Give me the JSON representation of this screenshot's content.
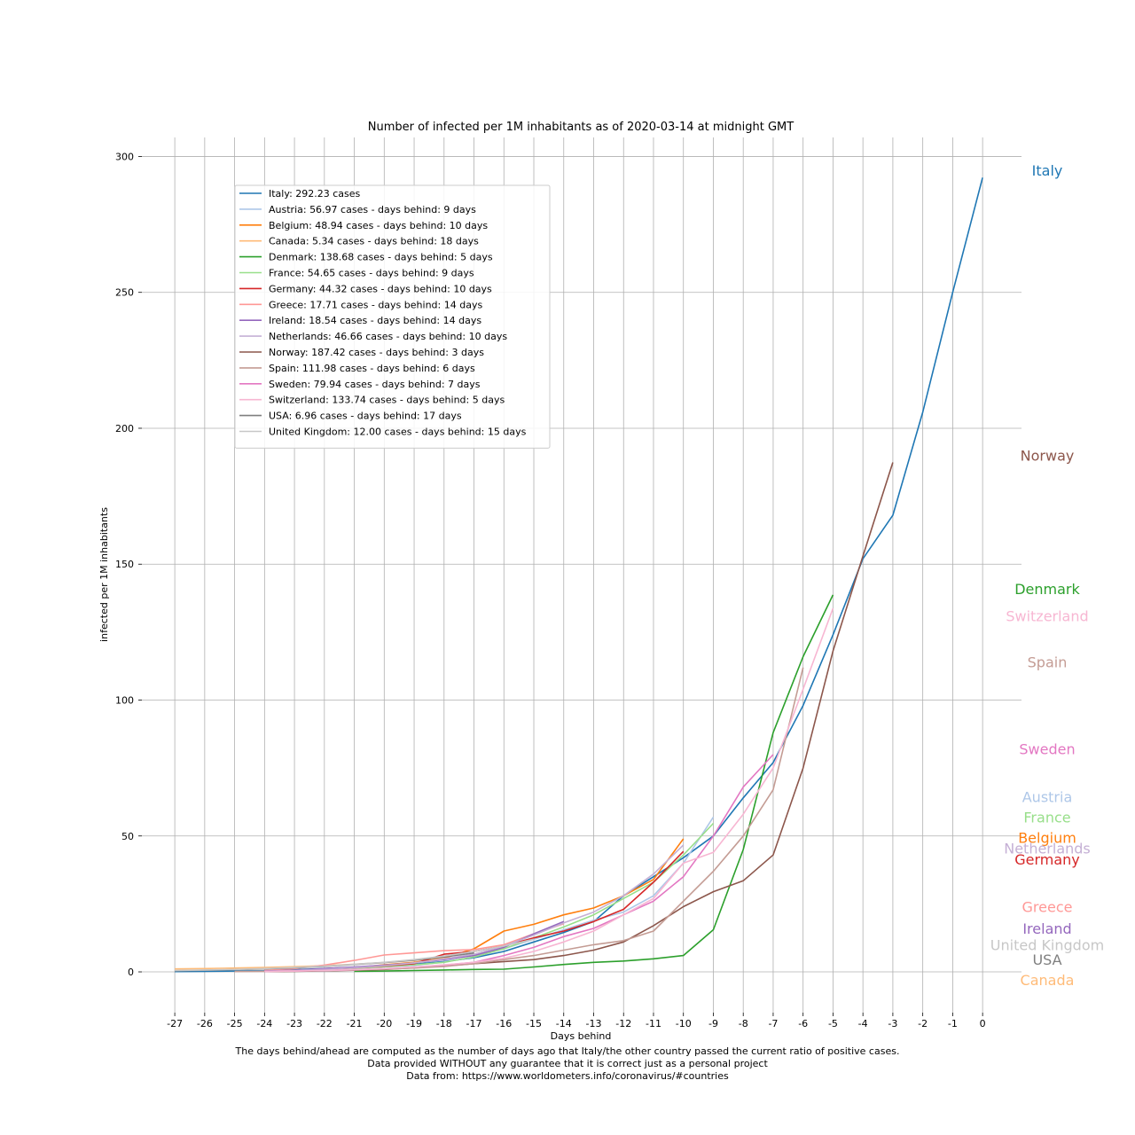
{
  "chart_data": {
    "type": "line",
    "title": "Number of infected per 1M inhabitants as of 2020-03-14 at midnight GMT",
    "xlabel": "Days behind",
    "ylabel": "infected per 1M inhabitants",
    "footnotes": [
      "The days behind/ahead are computed as the number of days ago that Italy/the other country passed the current ratio of positive cases.",
      "Data provided WITHOUT any guarantee that it is correct just as a personal project",
      "Data from: https://www.worldometers.info/coronavirus/#countries"
    ],
    "xlim": [
      -28.1,
      1.3
    ],
    "ylim": [
      -15,
      307
    ],
    "x_ticks": [
      -27,
      -26,
      -25,
      -24,
      -23,
      -22,
      -21,
      -20,
      -19,
      -18,
      -17,
      -16,
      -15,
      -14,
      -13,
      -12,
      -11,
      -10,
      -9,
      -8,
      -7,
      -6,
      -5,
      -4,
      -3,
      -2,
      -1,
      0
    ],
    "y_ticks": [
      0,
      50,
      100,
      150,
      200,
      250,
      300
    ],
    "grid": true,
    "legend_position": "upper-left",
    "series": [
      {
        "name": "Italy",
        "legend": "Italy: 292.23 cases",
        "color": "#1f77b4",
        "x": [
          -27,
          -26,
          -25,
          -24,
          -23,
          -22,
          -21,
          -20,
          -19,
          -18,
          -17,
          -16,
          -15,
          -14,
          -13,
          -12,
          -11,
          -10,
          -9,
          -8,
          -7,
          -6,
          -5,
          -4,
          -3,
          -2,
          -1,
          0
        ],
        "y": [
          0.1,
          0.2,
          0.3,
          0.4,
          0.8,
          1.2,
          1.7,
          2.2,
          2.8,
          3.8,
          5.2,
          7.5,
          11,
          14.5,
          18.5,
          28,
          35,
          42,
          50,
          64,
          77,
          98,
          124,
          152,
          168,
          206,
          250,
          292.23
        ]
      },
      {
        "name": "Austria",
        "legend": "Austria: 56.97 cases - days behind: 9 days",
        "color": "#aec7e8",
        "x": [
          -24,
          -23,
          -22,
          -21,
          -20,
          -19,
          -18,
          -17,
          -16,
          -15,
          -14,
          -13,
          -12,
          -11,
          -10,
          -9
        ],
        "y": [
          0.2,
          0.5,
          0.9,
          1.3,
          1.8,
          2.4,
          3.6,
          5.5,
          8.5,
          12,
          15.5,
          19,
          22,
          28,
          40,
          56.97
        ]
      },
      {
        "name": "Belgium",
        "legend": "Belgium: 48.94 cases - days behind: 10 days",
        "color": "#ff7f0e",
        "x": [
          -24,
          -23,
          -22,
          -21,
          -20,
          -19,
          -18,
          -17,
          -16,
          -15,
          -14,
          -13,
          -12,
          -11,
          -10
        ],
        "y": [
          0.2,
          0.4,
          0.8,
          1.5,
          2.6,
          3.5,
          5.0,
          8.5,
          15,
          17.5,
          21,
          23.5,
          28,
          34,
          48.94
        ]
      },
      {
        "name": "Canada",
        "legend": "Canada: 5.34 cases - days behind: 18 days",
        "color": "#ffbb78",
        "x": [
          -27,
          -26,
          -25,
          -24,
          -23,
          -22,
          -21,
          -20,
          -19,
          -18
        ],
        "y": [
          1.1,
          1.2,
          1.4,
          1.6,
          1.9,
          2.3,
          2.8,
          3.4,
          4.2,
          5.34
        ]
      },
      {
        "name": "Denmark",
        "legend": "Denmark: 138.68 cases - days behind: 5 days",
        "color": "#2ca02c",
        "x": [
          -21,
          -20,
          -19,
          -18,
          -17,
          -16,
          -15,
          -14,
          -13,
          -12,
          -11,
          -10,
          -9,
          -8,
          -7,
          -6,
          -5
        ],
        "y": [
          0.2,
          0.3,
          0.5,
          0.7,
          0.9,
          1.0,
          1.8,
          2.7,
          3.5,
          4.0,
          4.8,
          6.0,
          15.5,
          45,
          88,
          116,
          138.68
        ]
      },
      {
        "name": "France",
        "legend": "France: 54.65 cases - days behind: 9 days",
        "color": "#98df8a",
        "x": [
          -24,
          -23,
          -22,
          -21,
          -20,
          -19,
          -18,
          -17,
          -16,
          -15,
          -14,
          -13,
          -12,
          -11,
          -10,
          -9
        ],
        "y": [
          0.2,
          0.4,
          0.8,
          1.3,
          1.9,
          2.6,
          3.5,
          5.5,
          8.5,
          12.5,
          16.5,
          21,
          27,
          33,
          43,
          54.65
        ]
      },
      {
        "name": "Germany",
        "legend": "Germany: 44.32 cases - days behind: 10 days",
        "color": "#d62728",
        "x": [
          -24,
          -23,
          -22,
          -21,
          -20,
          -19,
          -18,
          -17,
          -16,
          -15,
          -14,
          -13,
          -12,
          -11,
          -10
        ],
        "y": [
          0.2,
          0.4,
          0.8,
          1.5,
          2.2,
          3.0,
          6.5,
          7.5,
          9.5,
          12.5,
          15,
          18.5,
          23,
          33,
          44.32
        ]
      },
      {
        "name": "Greece",
        "legend": "Greece: 17.71 cases - days behind: 14 days",
        "color": "#ff9896",
        "x": [
          -24,
          -23,
          -22,
          -21,
          -20,
          -19,
          -18,
          -17,
          -16,
          -15,
          -14
        ],
        "y": [
          0.5,
          1.2,
          2.5,
          4.2,
          6.2,
          7.0,
          7.8,
          8.2,
          10.0,
          14.0,
          17.71
        ]
      },
      {
        "name": "Ireland",
        "legend": "Ireland: 18.54 cases - days behind: 14 days",
        "color": "#9467bd",
        "x": [
          -24,
          -23,
          -22,
          -21,
          -20,
          -19,
          -18,
          -17,
          -16,
          -15,
          -14
        ],
        "y": [
          0.3,
          0.6,
          1.2,
          1.8,
          2.5,
          3.3,
          4.5,
          6.0,
          9.0,
          14.0,
          18.54
        ]
      },
      {
        "name": "Netherlands",
        "legend": "Netherlands: 46.66 cases - days behind: 10 days",
        "color": "#c5b0d5",
        "x": [
          -24,
          -23,
          -22,
          -21,
          -20,
          -19,
          -18,
          -17,
          -16,
          -15,
          -14,
          -13,
          -12,
          -11,
          -10
        ],
        "y": [
          0.2,
          0.5,
          0.9,
          1.5,
          2.3,
          3.3,
          4.8,
          6.5,
          9.5,
          13.5,
          18,
          22,
          28,
          36,
          46.66
        ]
      },
      {
        "name": "Norway",
        "legend": "Norway: 187.42 cases - days behind: 3 days",
        "color": "#8c564b",
        "x": [
          -24,
          -23,
          -22,
          -21,
          -20,
          -19,
          -18,
          -17,
          -16,
          -15,
          -14,
          -13,
          -12,
          -11,
          -10,
          -9,
          -8,
          -7,
          -6,
          -5,
          -4,
          -3
        ],
        "y": [
          0.1,
          0.2,
          0.4,
          0.6,
          0.9,
          1.5,
          2.2,
          3.0,
          3.8,
          4.5,
          6.0,
          8.0,
          11,
          17,
          24,
          29.5,
          33.5,
          43,
          75,
          118,
          153,
          187.42
        ]
      },
      {
        "name": "Spain",
        "legend": "Spain: 111.98 cases - days behind: 6 days",
        "color": "#c49c94",
        "x": [
          -25,
          -24,
          -23,
          -22,
          -21,
          -20,
          -19,
          -18,
          -17,
          -16,
          -15,
          -14,
          -13,
          -12,
          -11,
          -10,
          -9,
          -8,
          -7,
          -6
        ],
        "y": [
          0.1,
          0.2,
          0.3,
          0.5,
          0.7,
          1.0,
          1.4,
          2.0,
          3.0,
          4.5,
          6.0,
          8.0,
          10,
          11.5,
          15,
          26,
          37,
          50,
          67,
          111.98
        ]
      },
      {
        "name": "Sweden",
        "legend": "Sweden: 79.94 cases - days behind: 7 days",
        "color": "#e377c2",
        "x": [
          -24,
          -23,
          -22,
          -21,
          -20,
          -19,
          -18,
          -17,
          -16,
          -15,
          -14,
          -13,
          -12,
          -11,
          -10,
          -9,
          -8,
          -7
        ],
        "y": [
          0.2,
          0.3,
          0.5,
          0.8,
          1.2,
          1.8,
          2.5,
          3.5,
          6.0,
          9.0,
          13,
          16,
          21,
          26,
          35,
          50,
          68,
          79.94
        ]
      },
      {
        "name": "Switzerland",
        "legend": "Switzerland: 133.74 cases - days behind: 5 days",
        "color": "#f7b6d2",
        "x": [
          -24,
          -23,
          -22,
          -21,
          -20,
          -19,
          -18,
          -17,
          -16,
          -15,
          -14,
          -13,
          -12,
          -11,
          -10,
          -9,
          -8,
          -7,
          -6,
          -5
        ],
        "y": [
          0.2,
          0.3,
          0.5,
          0.8,
          1.2,
          1.8,
          2.6,
          3.5,
          5.0,
          7.5,
          11,
          15,
          21,
          27,
          40,
          44,
          58,
          75,
          104,
          133.74
        ]
      },
      {
        "name": "USA",
        "legend": "USA: 6.96 cases - days behind: 17 days",
        "color": "#7f7f7f",
        "x": [
          -27,
          -26,
          -25,
          -24,
          -23,
          -22,
          -21,
          -20,
          -19,
          -18,
          -17
        ],
        "y": [
          0.4,
          0.6,
          0.8,
          1.1,
          1.5,
          2.0,
          2.7,
          3.4,
          4.3,
          5.5,
          6.96
        ]
      },
      {
        "name": "United Kingdom",
        "legend": "United Kingdom: 12.00 cases - days behind: 15 days",
        "color": "#c7c7c7",
        "x": [
          -27,
          -26,
          -25,
          -24,
          -23,
          -22,
          -21,
          -20,
          -19,
          -18,
          -17,
          -16,
          -15
        ],
        "y": [
          0.5,
          0.7,
          0.9,
          1.2,
          1.6,
          2.1,
          2.8,
          3.5,
          4.5,
          5.8,
          7.5,
          9.5,
          12.0
        ]
      }
    ],
    "right_labels": [
      {
        "text": "Italy",
        "color": "#1f77b4",
        "y": 295
      },
      {
        "text": "Norway",
        "color": "#8c564b",
        "y": 190
      },
      {
        "text": "Denmark",
        "color": "#2ca02c",
        "y": 141
      },
      {
        "text": "Switzerland",
        "color": "#f7b6d2",
        "y": 131
      },
      {
        "text": "Spain",
        "color": "#c49c94",
        "y": 114
      },
      {
        "text": "Sweden",
        "color": "#e377c2",
        "y": 82
      },
      {
        "text": "Austria",
        "color": "#aec7e8",
        "y": 64.5
      },
      {
        "text": "France",
        "color": "#98df8a",
        "y": 57
      },
      {
        "text": "Belgium",
        "color": "#ff7f0e",
        "y": 49.5
      },
      {
        "text": "Netherlands",
        "color": "#c5b0d5",
        "y": 45.5
      },
      {
        "text": "Germany",
        "color": "#d62728",
        "y": 41.5
      },
      {
        "text": "Greece",
        "color": "#ff9896",
        "y": 24
      },
      {
        "text": "Ireland",
        "color": "#9467bd",
        "y": 16
      },
      {
        "text": "United Kingdom",
        "color": "#c7c7c7",
        "y": 10
      },
      {
        "text": "USA",
        "color": "#7f7f7f",
        "y": 4.5
      },
      {
        "text": "Canada",
        "color": "#ffbb78",
        "y": -3
      }
    ]
  }
}
